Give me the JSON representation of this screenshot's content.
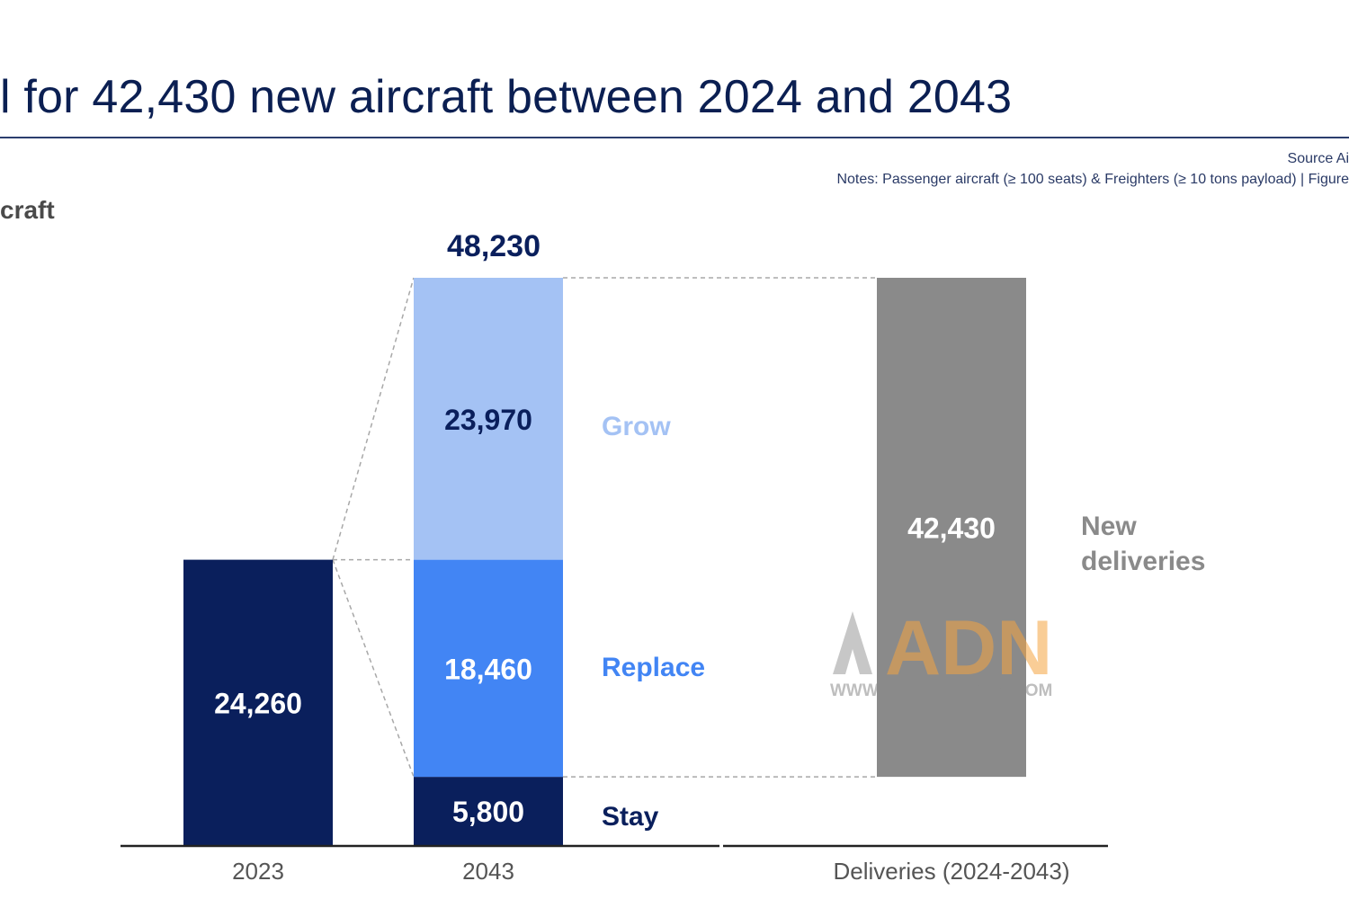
{
  "title": "l for 42,430 new aircraft between 2024 and 2043",
  "source": "Source Ai",
  "notes": "Notes: Passenger aircraft (≥ 100 seats) & Freighters (≥ 10 tons payload) | Figure",
  "unit_label": "craft",
  "colors": {
    "fleet_2023": "#0a1f5c",
    "stay": "#0a1f5c",
    "replace": "#4285f4",
    "grow": "#a4c2f4",
    "deliveries": "#8a8a8a",
    "grow_label": "#a4c2f4",
    "replace_label": "#4285f4",
    "stay_label": "#0a1f5c",
    "deliveries_label": "#8a8a8a"
  },
  "chart_data": {
    "type": "bar",
    "categories": [
      "2023",
      "2043",
      "Deliveries (2024-2043)"
    ],
    "total_2043": "48,230",
    "bars": [
      {
        "category": "2023",
        "segments": [
          {
            "key": "fleet_2023",
            "value": 24260,
            "label": "24,260"
          }
        ]
      },
      {
        "category": "2043",
        "segments": [
          {
            "key": "stay",
            "value": 5800,
            "label": "5,800",
            "series": "Stay"
          },
          {
            "key": "replace",
            "value": 18460,
            "label": "18,460",
            "series": "Replace"
          },
          {
            "key": "grow",
            "value": 23970,
            "label": "23,970",
            "series": "Grow"
          }
        ]
      },
      {
        "category": "Deliveries (2024-2043)",
        "base": 5800,
        "segments": [
          {
            "key": "deliveries",
            "value": 42430,
            "label": "42,430",
            "series": "New deliveries"
          }
        ]
      }
    ],
    "series_labels": {
      "grow": "Grow",
      "replace": "Replace",
      "stay": "Stay",
      "deliveries": [
        "New",
        "deliveries"
      ]
    }
  },
  "watermark": {
    "text": "ADN",
    "url": "WWW.AIRDATANEWS.COM"
  }
}
